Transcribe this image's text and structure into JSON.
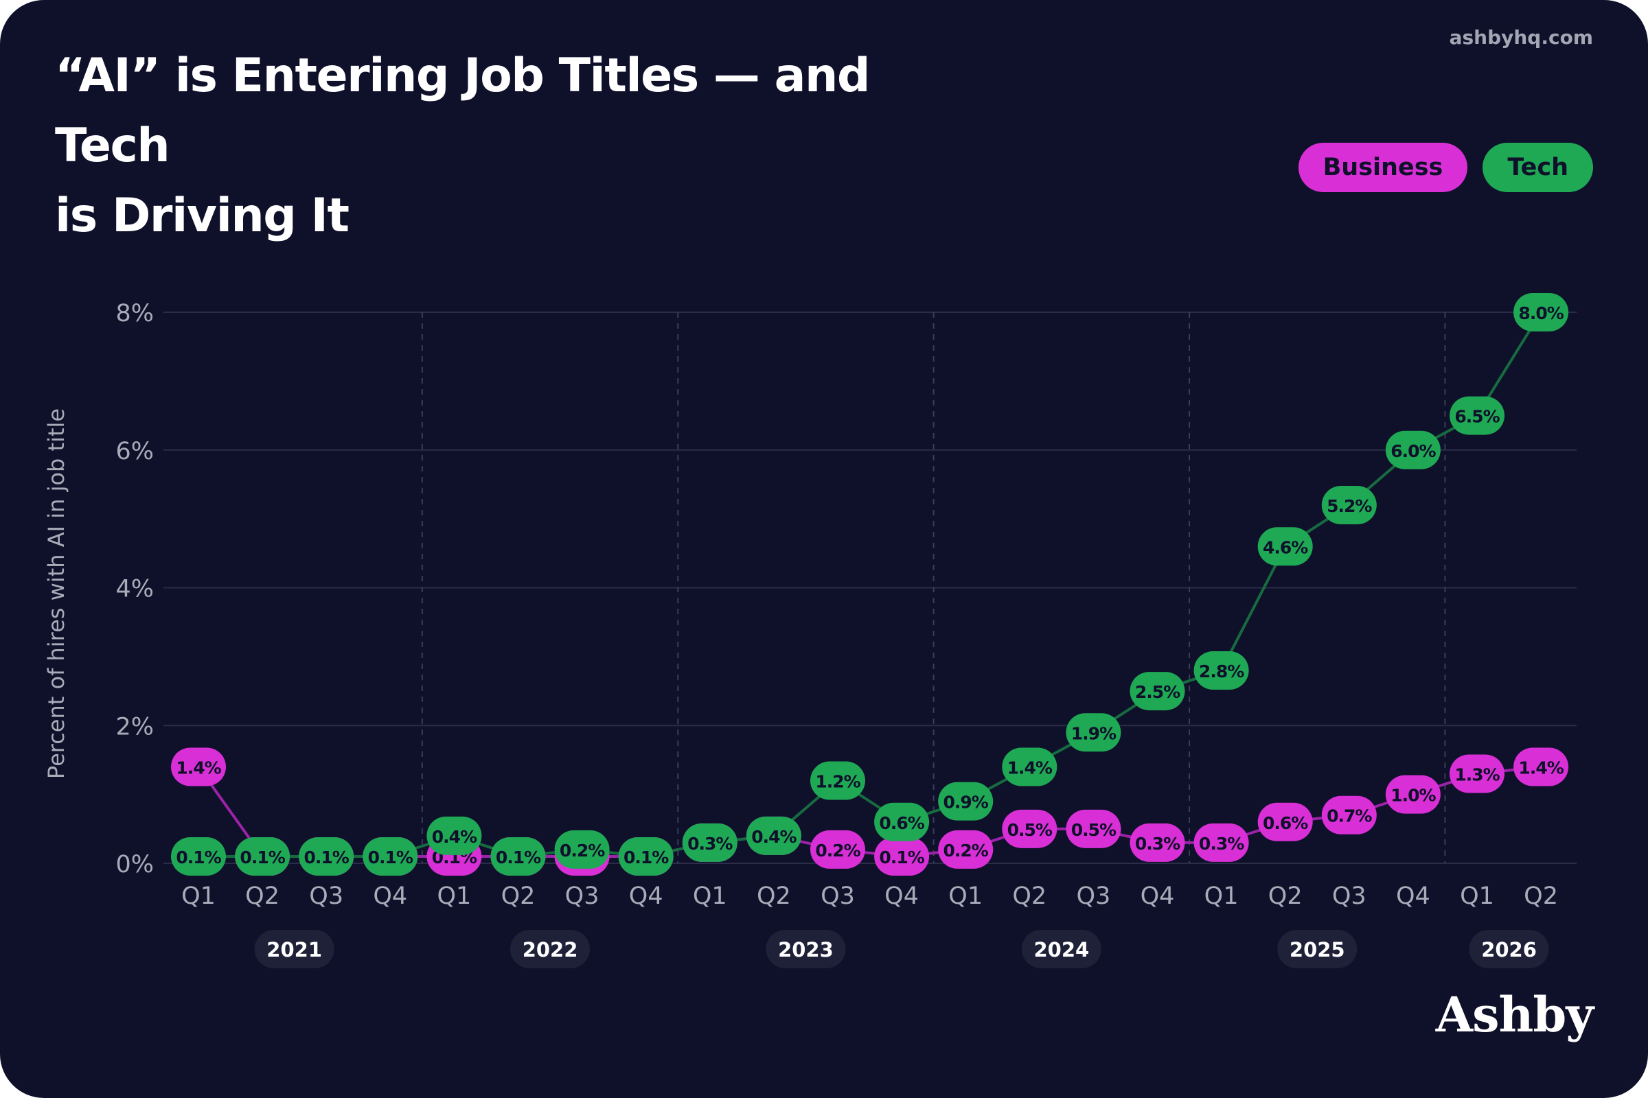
{
  "header": {
    "title_line1": "“AI” is Entering Job Titles — and Tech",
    "title_line2": "is Driving It",
    "site": "ashbyhq.com",
    "brand": "Ashby"
  },
  "colors": {
    "background": "#0f102a",
    "business": "#d92fd6",
    "tech": "#1fa955",
    "grid": "#2b2d48",
    "axis_text": "#a9abb9"
  },
  "chart_data": {
    "type": "line",
    "title": "“AI” is Entering Job Titles — and Tech is Driving It",
    "ylabel": "Percent of hires with AI in job title",
    "ylim": [
      0,
      8
    ],
    "yticks": [
      "0%",
      "2%",
      "4%",
      "6%",
      "8%"
    ],
    "grid": true,
    "legend": "top-right",
    "categories": [
      "Q1",
      "Q2",
      "Q3",
      "Q4",
      "Q1",
      "Q2",
      "Q3",
      "Q4",
      "Q1",
      "Q2",
      "Q3",
      "Q4",
      "Q1",
      "Q2",
      "Q3",
      "Q4",
      "Q1",
      "Q2",
      "Q3",
      "Q4",
      "Q1",
      "Q2"
    ],
    "years": [
      {
        "label": "2021",
        "start": 0,
        "end": 3
      },
      {
        "label": "2022",
        "start": 4,
        "end": 7
      },
      {
        "label": "2023",
        "start": 8,
        "end": 11
      },
      {
        "label": "2024",
        "start": 12,
        "end": 15
      },
      {
        "label": "2025",
        "start": 16,
        "end": 19
      },
      {
        "label": "2026",
        "start": 20,
        "end": 21
      }
    ],
    "series": [
      {
        "name": "Business",
        "values": [
          1.4,
          0.1,
          0.1,
          0.1,
          0.1,
          0.1,
          0.1,
          0.1,
          0.3,
          0.4,
          0.2,
          0.1,
          0.2,
          0.5,
          0.5,
          0.3,
          0.3,
          0.6,
          0.7,
          1.0,
          1.3,
          1.4
        ],
        "labels": [
          "1.4%",
          "",
          "",
          "",
          "0.1%",
          "",
          "",
          "",
          "",
          "",
          "0.2%",
          "0.1%",
          "0.2%",
          "0.5%",
          "0.5%",
          "0.3%",
          "0.3%",
          "0.6%",
          "0.7%",
          "1.0%",
          "1.3%",
          "1.4%"
        ]
      },
      {
        "name": "Tech",
        "values": [
          0.1,
          0.1,
          0.1,
          0.1,
          0.4,
          0.1,
          0.2,
          0.1,
          0.3,
          0.4,
          1.2,
          0.6,
          0.9,
          1.4,
          1.9,
          2.5,
          2.8,
          4.6,
          5.2,
          6.0,
          6.5,
          8.0
        ],
        "labels": [
          "0.1%",
          "0.1%",
          "0.1%",
          "0.1%",
          "0.4%",
          "0.1%",
          "0.2%",
          "0.1%",
          "0.3%",
          "0.4%",
          "1.2%",
          "0.6%",
          "0.9%",
          "1.4%",
          "1.9%",
          "2.5%",
          "2.8%",
          "4.6%",
          "5.2%",
          "6.0%",
          "6.5%",
          "8.0%"
        ]
      }
    ]
  }
}
